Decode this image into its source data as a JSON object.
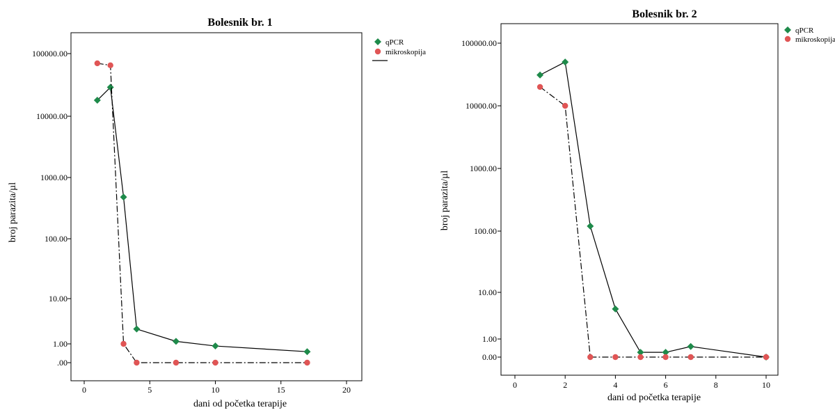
{
  "chart_data": [
    {
      "type": "line",
      "title": "Bolesnik br. 1",
      "xlabel": "dani od početka terapije",
      "ylabel": "broj parazita/µl",
      "xlim": [
        0,
        20
      ],
      "x_ticks": [
        "0",
        "5",
        "10",
        "15",
        "20"
      ],
      "y_ticks": [
        "100000.00",
        "10000.00",
        "1000.00",
        "100.00",
        "10.00",
        "1.00",
        ".00"
      ],
      "y_scale": "log(y+1)",
      "grid": false,
      "legend": "top-right, outside plot",
      "series": [
        {
          "name": "qPCR",
          "color": "#1e8a4a",
          "marker": "diamond",
          "line": "solid",
          "x": [
            1,
            2,
            3,
            4,
            7,
            10,
            17
          ],
          "y": [
            18000,
            29000,
            480,
            2.5,
            1.2,
            0.85,
            0.5
          ]
        },
        {
          "name": "mikroskopija",
          "color": "#e05555",
          "marker": "circle",
          "line": "dash-dot",
          "x": [
            1,
            2,
            3,
            4,
            7,
            10,
            17
          ],
          "y": [
            70000,
            65000,
            1,
            0,
            0,
            0,
            0
          ]
        }
      ]
    },
    {
      "type": "line",
      "title": "Bolesnik br. 2",
      "xlabel": "dani od početka terapije",
      "ylabel": "broj parazita/µl",
      "xlim": [
        0,
        10
      ],
      "x_ticks": [
        "0",
        "2",
        "4",
        "6",
        "8",
        "10"
      ],
      "y_ticks": [
        "100000.00",
        "10000.00",
        "1000.00",
        "100.00",
        "10.00",
        "1.00",
        "0.00"
      ],
      "y_scale": "log(y+1)",
      "grid": false,
      "legend": "top-right, outside plot",
      "series": [
        {
          "name": "qPCR",
          "color": "#1e8a4a",
          "marker": "diamond",
          "line": "solid",
          "x": [
            1,
            2,
            3,
            4,
            5,
            6,
            7,
            10
          ],
          "y": [
            31000,
            50000,
            120,
            5,
            0.2,
            0.2,
            0.5,
            0
          ]
        },
        {
          "name": "mikroskopija",
          "color": "#e05555",
          "marker": "circle",
          "line": "dash-dot",
          "x": [
            1,
            2,
            3,
            4,
            5,
            6,
            7,
            10
          ],
          "y": [
            20000,
            10000,
            0,
            0,
            0,
            0,
            0,
            0
          ]
        }
      ]
    }
  ]
}
